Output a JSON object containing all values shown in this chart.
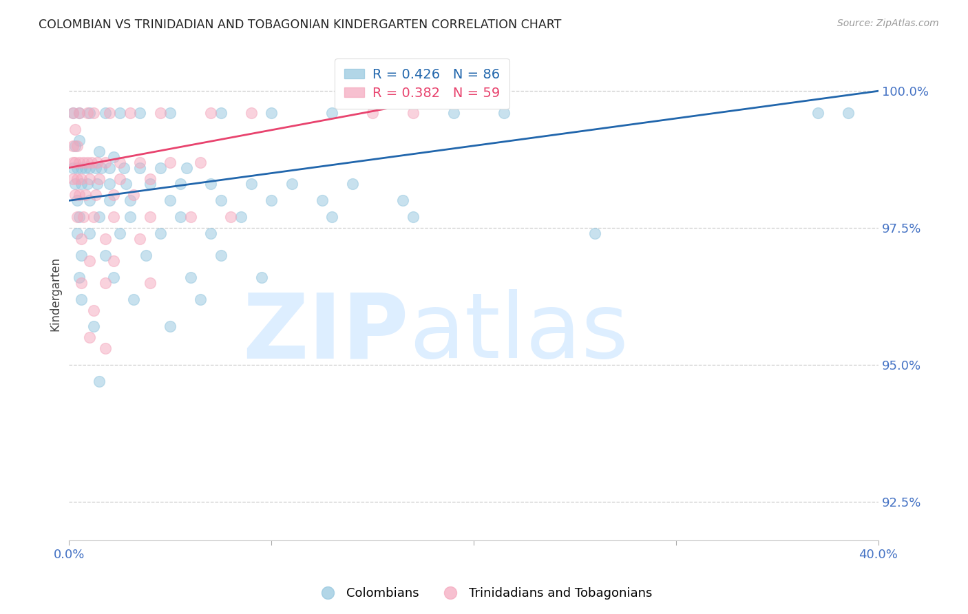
{
  "title": "COLOMBIAN VS TRINIDADIAN AND TOBAGONIAN KINDERGARTEN CORRELATION CHART",
  "source": "Source: ZipAtlas.com",
  "ylabel": "Kindergarten",
  "ytick_labels": [
    "92.5%",
    "95.0%",
    "97.5%",
    "100.0%"
  ],
  "ytick_values": [
    92.5,
    95.0,
    97.5,
    100.0
  ],
  "xlim": [
    0.0,
    40.0
  ],
  "ylim": [
    91.8,
    100.8
  ],
  "watermark_zip": "ZIP",
  "watermark_atlas": "atlas",
  "legend_colombians": "Colombians",
  "legend_trinidadians": "Trinidadians and Tobagonians",
  "r_colombians": 0.426,
  "n_colombians": 86,
  "r_trinidadians": 0.382,
  "n_trinidadians": 59,
  "blue_color": "#92c5de",
  "pink_color": "#f4a6bc",
  "blue_line_color": "#2166ac",
  "pink_line_color": "#e8436e",
  "tick_color": "#4472c4",
  "watermark_color": "#ddeeff",
  "blue_points": [
    [
      0.2,
      99.6
    ],
    [
      0.5,
      99.6
    ],
    [
      1.0,
      99.6
    ],
    [
      1.8,
      99.6
    ],
    [
      2.5,
      99.6
    ],
    [
      3.5,
      99.6
    ],
    [
      5.0,
      99.6
    ],
    [
      7.5,
      99.6
    ],
    [
      10.0,
      99.6
    ],
    [
      13.0,
      99.6
    ],
    [
      19.0,
      99.6
    ],
    [
      21.5,
      99.6
    ],
    [
      37.0,
      99.6
    ],
    [
      38.5,
      99.6
    ],
    [
      0.3,
      99.0
    ],
    [
      0.5,
      99.1
    ],
    [
      1.5,
      98.9
    ],
    [
      2.2,
      98.8
    ],
    [
      0.2,
      98.6
    ],
    [
      0.4,
      98.6
    ],
    [
      0.6,
      98.6
    ],
    [
      0.8,
      98.6
    ],
    [
      1.0,
      98.6
    ],
    [
      1.3,
      98.6
    ],
    [
      1.6,
      98.6
    ],
    [
      2.0,
      98.6
    ],
    [
      2.7,
      98.6
    ],
    [
      3.5,
      98.6
    ],
    [
      4.5,
      98.6
    ],
    [
      5.8,
      98.6
    ],
    [
      0.3,
      98.3
    ],
    [
      0.6,
      98.3
    ],
    [
      0.9,
      98.3
    ],
    [
      1.4,
      98.3
    ],
    [
      2.0,
      98.3
    ],
    [
      2.8,
      98.3
    ],
    [
      4.0,
      98.3
    ],
    [
      5.5,
      98.3
    ],
    [
      7.0,
      98.3
    ],
    [
      9.0,
      98.3
    ],
    [
      11.0,
      98.3
    ],
    [
      14.0,
      98.3
    ],
    [
      0.4,
      98.0
    ],
    [
      1.0,
      98.0
    ],
    [
      2.0,
      98.0
    ],
    [
      3.0,
      98.0
    ],
    [
      5.0,
      98.0
    ],
    [
      7.5,
      98.0
    ],
    [
      10.0,
      98.0
    ],
    [
      12.5,
      98.0
    ],
    [
      16.5,
      98.0
    ],
    [
      0.5,
      97.7
    ],
    [
      1.5,
      97.7
    ],
    [
      3.0,
      97.7
    ],
    [
      5.5,
      97.7
    ],
    [
      8.5,
      97.7
    ],
    [
      13.0,
      97.7
    ],
    [
      17.0,
      97.7
    ],
    [
      0.4,
      97.4
    ],
    [
      1.0,
      97.4
    ],
    [
      2.5,
      97.4
    ],
    [
      4.5,
      97.4
    ],
    [
      7.0,
      97.4
    ],
    [
      26.0,
      97.4
    ],
    [
      0.6,
      97.0
    ],
    [
      1.8,
      97.0
    ],
    [
      3.8,
      97.0
    ],
    [
      7.5,
      97.0
    ],
    [
      0.5,
      96.6
    ],
    [
      2.2,
      96.6
    ],
    [
      6.0,
      96.6
    ],
    [
      9.5,
      96.6
    ],
    [
      0.6,
      96.2
    ],
    [
      3.2,
      96.2
    ],
    [
      6.5,
      96.2
    ],
    [
      1.2,
      95.7
    ],
    [
      5.0,
      95.7
    ],
    [
      1.5,
      94.7
    ]
  ],
  "pink_points": [
    [
      0.2,
      99.6
    ],
    [
      0.5,
      99.6
    ],
    [
      0.9,
      99.6
    ],
    [
      1.2,
      99.6
    ],
    [
      2.0,
      99.6
    ],
    [
      3.0,
      99.6
    ],
    [
      4.5,
      99.6
    ],
    [
      7.0,
      99.6
    ],
    [
      9.0,
      99.6
    ],
    [
      15.0,
      99.6
    ],
    [
      17.0,
      99.6
    ],
    [
      0.3,
      99.3
    ],
    [
      0.2,
      99.0
    ],
    [
      0.4,
      99.0
    ],
    [
      0.2,
      98.7
    ],
    [
      0.3,
      98.7
    ],
    [
      0.5,
      98.7
    ],
    [
      0.7,
      98.7
    ],
    [
      0.9,
      98.7
    ],
    [
      1.1,
      98.7
    ],
    [
      1.4,
      98.7
    ],
    [
      1.8,
      98.7
    ],
    [
      2.5,
      98.7
    ],
    [
      3.5,
      98.7
    ],
    [
      5.0,
      98.7
    ],
    [
      6.5,
      98.7
    ],
    [
      0.2,
      98.4
    ],
    [
      0.4,
      98.4
    ],
    [
      0.6,
      98.4
    ],
    [
      1.0,
      98.4
    ],
    [
      1.5,
      98.4
    ],
    [
      2.5,
      98.4
    ],
    [
      4.0,
      98.4
    ],
    [
      0.3,
      98.1
    ],
    [
      0.5,
      98.1
    ],
    [
      0.8,
      98.1
    ],
    [
      1.3,
      98.1
    ],
    [
      2.2,
      98.1
    ],
    [
      3.2,
      98.1
    ],
    [
      0.4,
      97.7
    ],
    [
      0.7,
      97.7
    ],
    [
      1.2,
      97.7
    ],
    [
      2.2,
      97.7
    ],
    [
      4.0,
      97.7
    ],
    [
      6.0,
      97.7
    ],
    [
      8.0,
      97.7
    ],
    [
      0.6,
      97.3
    ],
    [
      1.8,
      97.3
    ],
    [
      3.5,
      97.3
    ],
    [
      1.0,
      96.9
    ],
    [
      2.2,
      96.9
    ],
    [
      0.6,
      96.5
    ],
    [
      1.8,
      96.5
    ],
    [
      4.0,
      96.5
    ],
    [
      1.2,
      96.0
    ],
    [
      1.0,
      95.5
    ],
    [
      1.8,
      95.3
    ]
  ]
}
